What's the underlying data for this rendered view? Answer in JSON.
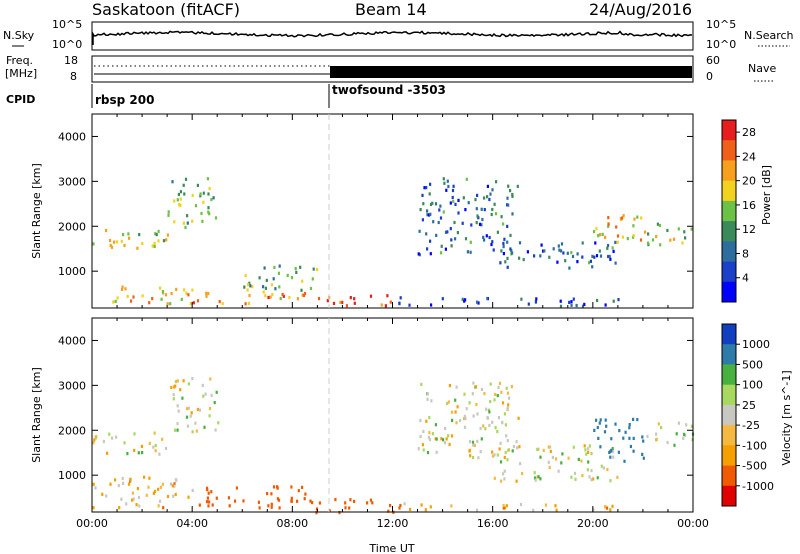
{
  "header": {
    "station": "Saskatoon (fitACF)",
    "beam": "Beam 14",
    "date": "24/Aug/2016"
  },
  "noise_panel": {
    "left_label": "N.Sky",
    "left_ticks": [
      "10^5",
      "10^0"
    ],
    "right_label": "N.Search",
    "right_ticks": [
      "10^5",
      "10^0"
    ]
  },
  "freq_panel": {
    "left_label_1": "Freq.",
    "left_label_2": "[MHz]",
    "left_ticks": [
      "18",
      "8"
    ],
    "right_label": "Nave",
    "right_ticks": [
      "60",
      "0"
    ]
  },
  "cpid": {
    "label": "CPID",
    "segments": [
      {
        "name": "rbsp 200",
        "start_hour": 0.0
      },
      {
        "name": "twofsound -3503",
        "start_hour": 9.5
      }
    ]
  },
  "colors": {
    "power_scale": [
      "#0000ff",
      "#1a3fc8",
      "#2e6e9e",
      "#3a8a5a",
      "#6cc246",
      "#f2d21e",
      "#f7a01e",
      "#f0601a",
      "#e81e1e"
    ],
    "velocity_scale": [
      "#e00000",
      "#f05a00",
      "#f5a000",
      "#f5b840",
      "#c8c8c0",
      "#a8d860",
      "#48b040",
      "#2e7aa8",
      "#1040c0"
    ]
  },
  "chart_data": [
    {
      "type": "heatmap",
      "name": "power",
      "xlabel": "",
      "ylabel": "Slant Range [km]",
      "xlim": [
        0,
        24
      ],
      "ylim": [
        180,
        4500
      ],
      "x_ticks": [
        "00:00",
        "04:00",
        "08:00",
        "12:00",
        "16:00",
        "20:00",
        "00:00"
      ],
      "y_ticks": [
        1000,
        2000,
        3000,
        4000
      ],
      "colorbar_label": "Power [dB]",
      "colorbar_ticks": [
        4,
        8,
        12,
        16,
        20,
        24,
        28
      ],
      "colorbar_range": [
        0,
        30
      ],
      "echo_regions": [
        {
          "t": [
            0.0,
            3.0
          ],
          "r": [
            1500,
            2000
          ],
          "v": 18
        },
        {
          "t": [
            3.0,
            5.0
          ],
          "r": [
            2000,
            3100
          ],
          "v": 14
        },
        {
          "t": [
            0.0,
            4.0
          ],
          "r": [
            300,
            700
          ],
          "v": 20
        },
        {
          "t": [
            4.0,
            8.5
          ],
          "r": [
            300,
            600
          ],
          "v": 22
        },
        {
          "t": [
            6.0,
            9.0
          ],
          "r": [
            600,
            1200
          ],
          "v": 14
        },
        {
          "t": [
            9.0,
            12.0
          ],
          "r": [
            200,
            500
          ],
          "v": 26
        },
        {
          "t": [
            12.0,
            21.0
          ],
          "r": [
            250,
            450
          ],
          "v": 6
        },
        {
          "t": [
            13.0,
            17.0
          ],
          "r": [
            1400,
            3100
          ],
          "v": 8
        },
        {
          "t": [
            16.0,
            21.0
          ],
          "r": [
            1100,
            1700
          ],
          "v": 8
        },
        {
          "t": [
            20.0,
            22.0
          ],
          "r": [
            1500,
            2300
          ],
          "v": 20
        },
        {
          "t": [
            22.0,
            24.0
          ],
          "r": [
            1600,
            2100
          ],
          "v": 16
        }
      ]
    },
    {
      "type": "heatmap",
      "name": "velocity",
      "xlabel": "Time UT",
      "ylabel": "Slant Range [km]",
      "xlim": [
        0,
        24
      ],
      "ylim": [
        180,
        4500
      ],
      "x_ticks": [
        "00:00",
        "04:00",
        "08:00",
        "12:00",
        "16:00",
        "20:00",
        "00:00"
      ],
      "y_ticks": [
        1000,
        2000,
        3000,
        4000
      ],
      "colorbar_label": "Velocity [m s^-1]",
      "colorbar_ticks": [
        "1000",
        "500",
        "100",
        "25",
        "-25",
        "-100",
        "-500",
        "-1000"
      ],
      "echo_regions": [
        {
          "t": [
            0.0,
            3.0
          ],
          "r": [
            1500,
            2000
          ],
          "v": 0
        },
        {
          "t": [
            3.0,
            5.0
          ],
          "r": [
            2000,
            3200
          ],
          "v": 0
        },
        {
          "t": [
            0.0,
            4.0
          ],
          "r": [
            300,
            1000
          ],
          "v": -50
        },
        {
          "t": [
            4.0,
            8.5
          ],
          "r": [
            300,
            800
          ],
          "v": -200
        },
        {
          "t": [
            8.5,
            12.5
          ],
          "r": [
            200,
            500
          ],
          "v": -300
        },
        {
          "t": [
            12.0,
            21.0
          ],
          "r": [
            250,
            400
          ],
          "v": -50
        },
        {
          "t": [
            13.0,
            17.0
          ],
          "r": [
            1400,
            3100
          ],
          "v": 0
        },
        {
          "t": [
            16.0,
            21.0
          ],
          "r": [
            900,
            1700
          ],
          "v": 0
        },
        {
          "t": [
            20.0,
            22.0
          ],
          "r": [
            1300,
            2300
          ],
          "v": 400
        },
        {
          "t": [
            22.0,
            24.0
          ],
          "r": [
            1700,
            2200
          ],
          "v": 0
        }
      ]
    }
  ]
}
